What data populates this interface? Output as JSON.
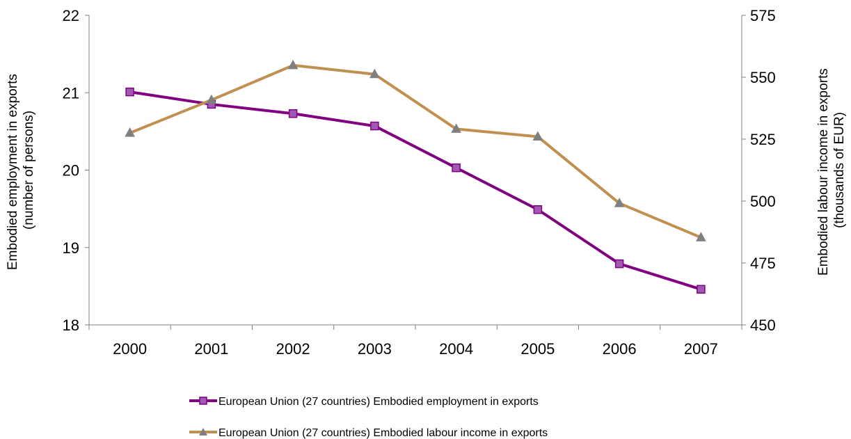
{
  "chart_data": {
    "type": "line",
    "categories": [
      "2000",
      "2001",
      "2002",
      "2003",
      "2004",
      "2005",
      "2006",
      "2007"
    ],
    "series": [
      {
        "name": "European Union (27 countries) Embodied employment in exports",
        "axis": "left",
        "color": "#800080",
        "marker_fill": "#a259b5",
        "marker": "square",
        "values": [
          21.01,
          20.85,
          20.73,
          20.57,
          20.03,
          19.49,
          18.79,
          18.46
        ]
      },
      {
        "name": "European Union (27 countries) Embodied labour income in exports",
        "axis": "right",
        "color": "#c09050",
        "marker_fill": "#808080",
        "marker": "triangle",
        "values": [
          527.5,
          540.8,
          554.8,
          551.2,
          529.1,
          526.0,
          499.1,
          485.3
        ]
      }
    ],
    "y_left": {
      "label_line1": "Embodied employment in exports",
      "label_line2": "(number of persons)",
      "ylim": [
        18,
        22
      ],
      "ticks": [
        "18",
        "19",
        "20",
        "21",
        "22"
      ]
    },
    "y_right": {
      "label_line1": "Embodied labour income in exports",
      "label_line2": "(thousands of EUR)",
      "ylim": [
        450,
        575
      ],
      "ticks": [
        "450",
        "475",
        "500",
        "525",
        "550",
        "575"
      ]
    },
    "legend_position": "bottom",
    "grid": false
  }
}
